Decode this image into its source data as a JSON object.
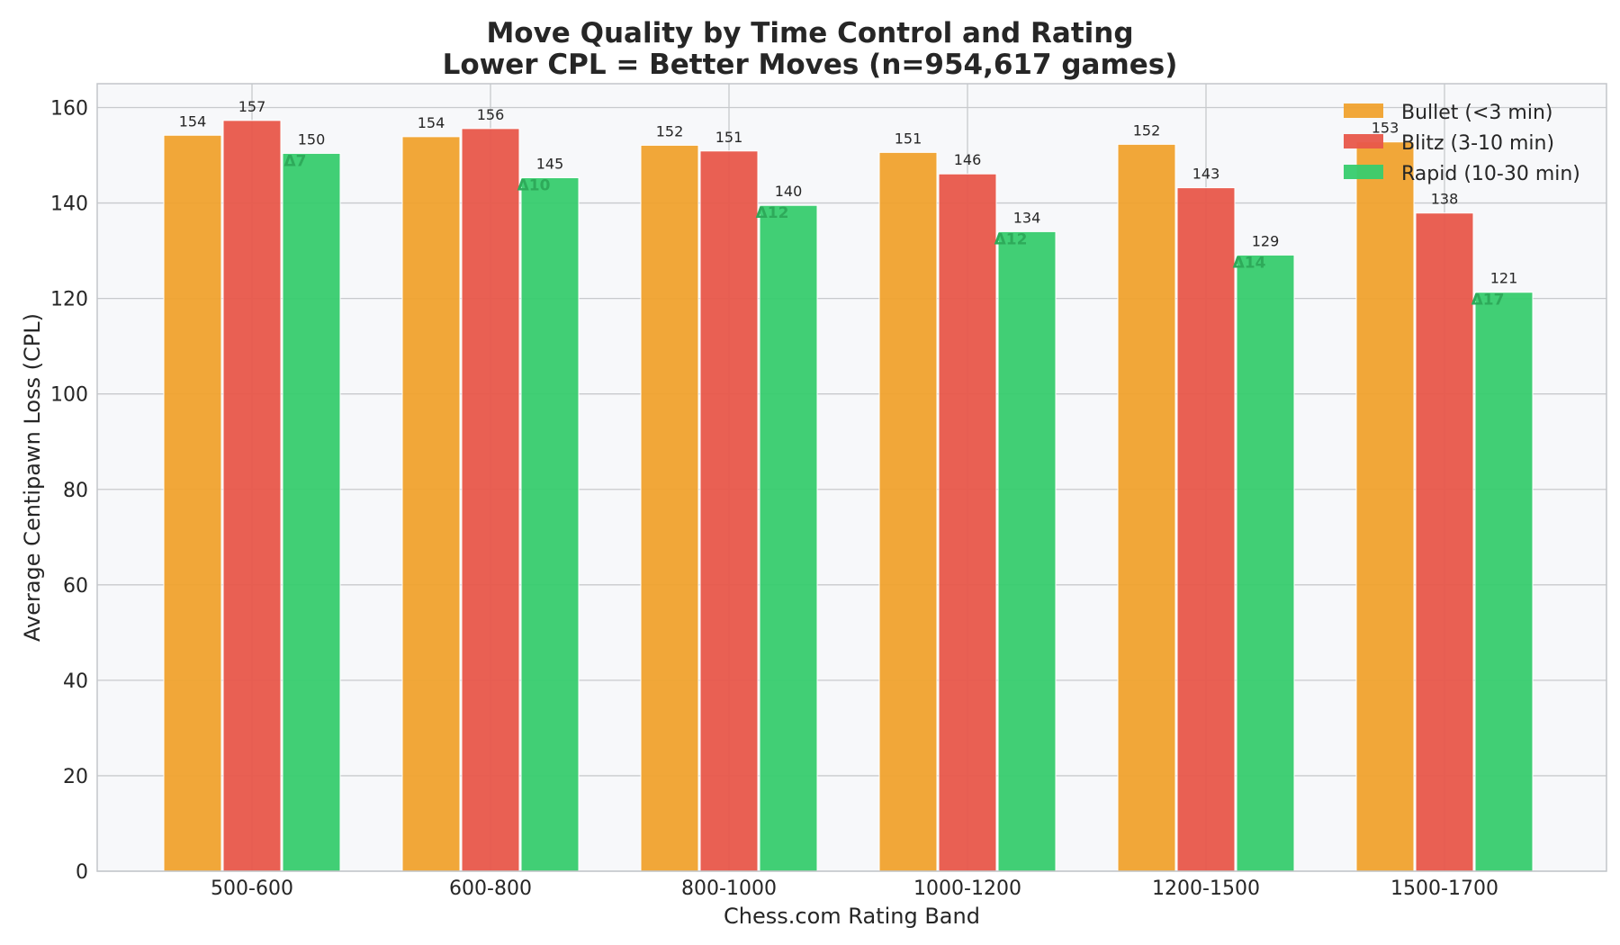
{
  "chart_data": {
    "type": "bar",
    "title": "Move Quality by Time Control and Rating",
    "subtitle": "Lower CPL = Better Moves (n=954,617 games)",
    "xlabel": "Chess.com Rating Band",
    "ylabel": "Average Centipawn Loss (CPL)",
    "categories": [
      "500-600",
      "600-800",
      "800-1000",
      "1000-1200",
      "1200-1500",
      "1500-1700"
    ],
    "ylim": [
      0,
      165
    ],
    "yticks": [
      0,
      20,
      40,
      60,
      80,
      100,
      120,
      140,
      160
    ],
    "grid": true,
    "legend_position": "top-right",
    "series": [
      {
        "name": "Bullet (<3 min)",
        "color": "#f0a22e",
        "values": [
          154.2,
          153.9,
          152.1,
          150.6,
          152.3,
          152.8
        ],
        "labels": [
          "154",
          "154",
          "152",
          "151",
          "152",
          "153"
        ]
      },
      {
        "name": "Blitz (3-10 min)",
        "color": "#e8574a",
        "values": [
          157.3,
          155.6,
          150.9,
          146.1,
          143.2,
          137.9
        ],
        "labels": [
          "157",
          "156",
          "151",
          "146",
          "143",
          "138"
        ]
      },
      {
        "name": "Rapid (10-30 min)",
        "color": "#37cc6e",
        "values": [
          150.4,
          145.3,
          139.5,
          134.0,
          129.1,
          121.3
        ],
        "labels": [
          "150",
          "145",
          "140",
          "134",
          "129",
          "121"
        ]
      }
    ],
    "annotations": [
      "Δ7",
      "Δ10",
      "Δ12",
      "Δ12",
      "Δ14",
      "Δ17"
    ],
    "annotation_color": "#2eaa5a",
    "plot_background": "#f7f8fa",
    "grid_color": "#c8cacd"
  }
}
